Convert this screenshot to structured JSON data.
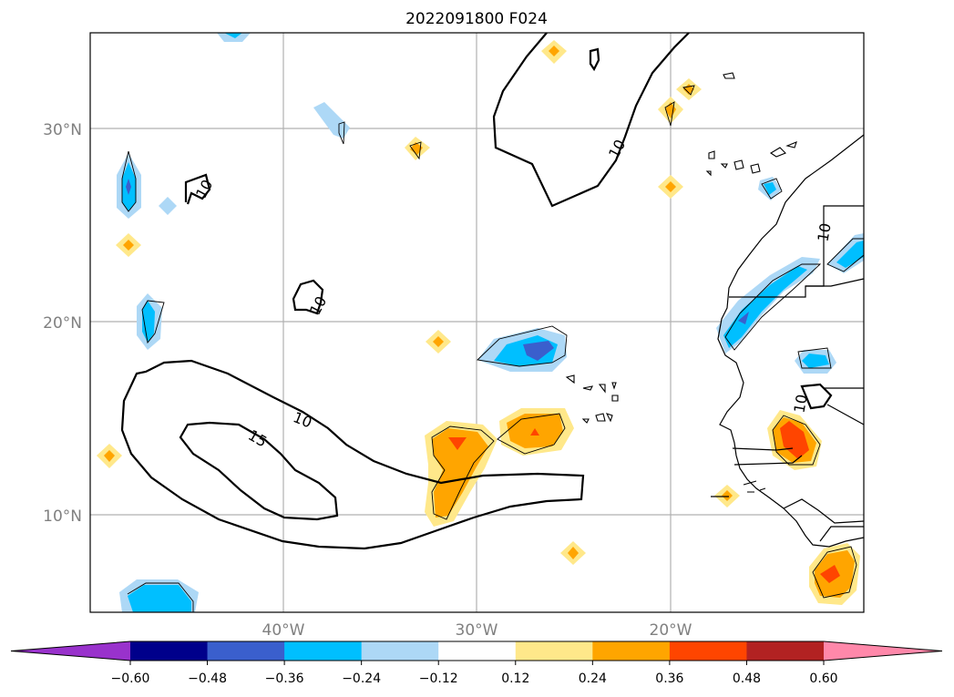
{
  "map": {
    "title": "2022091800 F024",
    "region": "Tropical/subtropical eastern North Atlantic and West Africa",
    "lat_labels": [
      "30°N",
      "20°N",
      "10°N"
    ],
    "lon_labels": [
      "40°W",
      "30°W",
      "20°W"
    ],
    "contour_labels": [
      "10",
      "10",
      "10",
      "10",
      "15",
      "10",
      "10"
    ]
  },
  "colorbar": {
    "ticks": [
      "−0.60",
      "−0.48",
      "−0.36",
      "−0.24",
      "−0.12",
      "0.12",
      "0.24",
      "0.36",
      "0.48",
      "0.60"
    ],
    "colors": [
      "#9932cc",
      "#00008b",
      "#3a5fcd",
      "#00bfff",
      "#add8f6",
      "#ffffff",
      "#ffe88a",
      "#ffa500",
      "#ff4500",
      "#b22222",
      "#ff88aa"
    ]
  }
}
